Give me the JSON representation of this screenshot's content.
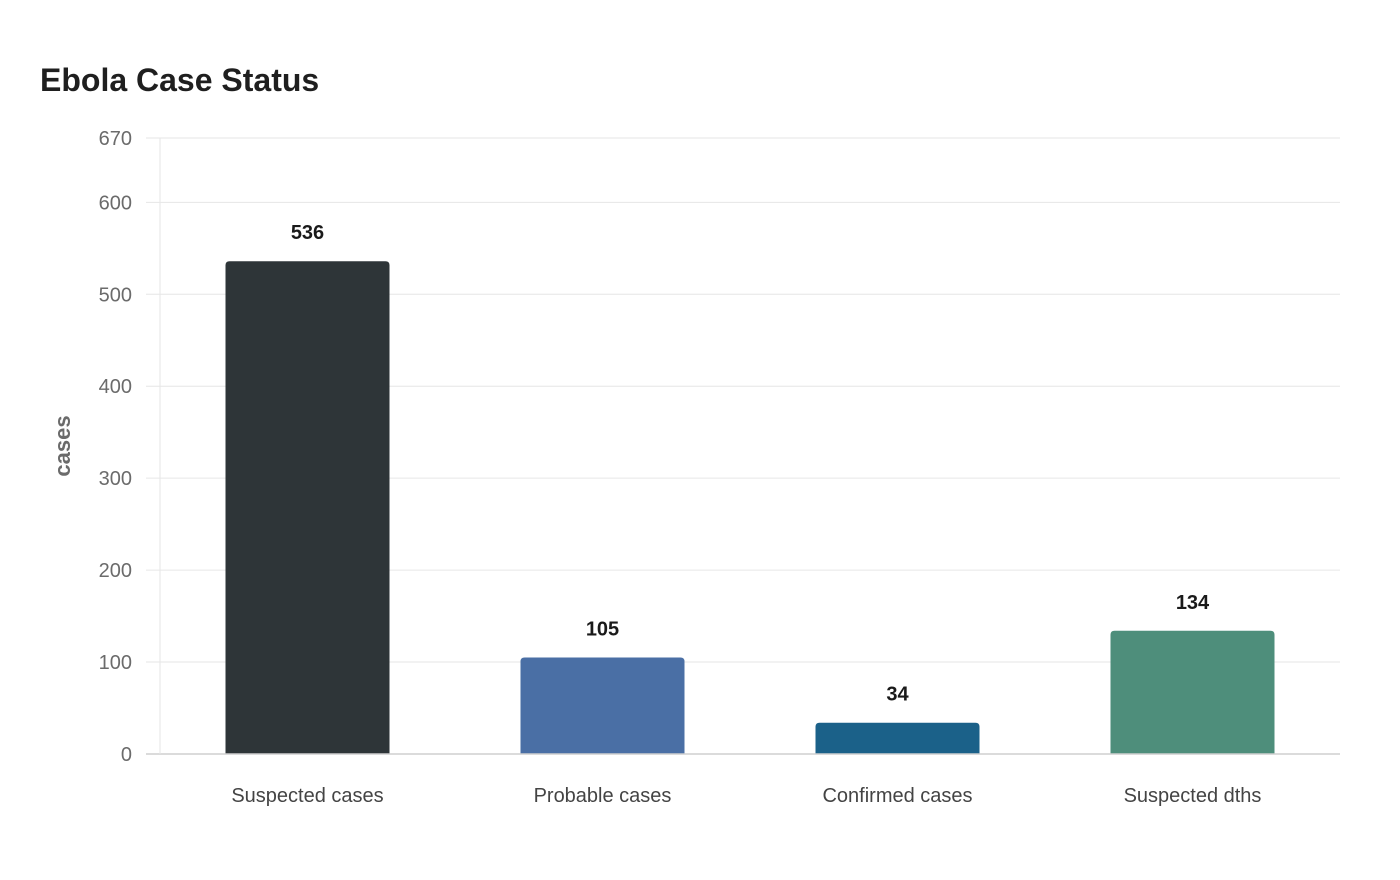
{
  "chart_data": {
    "type": "bar",
    "title": "Ebola Case Status",
    "xlabel": "",
    "ylabel": "cases",
    "categories": [
      "Suspected cases",
      "Probable cases",
      "Confirmed cases",
      "Suspected dths"
    ],
    "values": [
      536,
      105,
      34,
      134
    ],
    "colors": [
      "#2e3538",
      "#4a6fa5",
      "#1b6189",
      "#4e8e7b"
    ],
    "ylim": [
      0,
      670
    ],
    "yticks": [
      0,
      100,
      200,
      300,
      400,
      500,
      600,
      670
    ],
    "grid": true,
    "legend": "none"
  }
}
